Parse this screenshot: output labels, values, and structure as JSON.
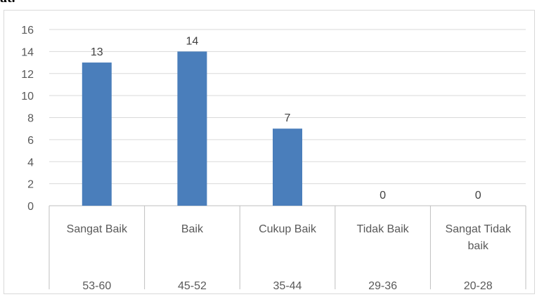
{
  "top_fragment": "at.",
  "chart_data": {
    "type": "bar",
    "categories": [
      {
        "label": [
          "Sangat Baik"
        ],
        "range": "53-60"
      },
      {
        "label": [
          "Baik"
        ],
        "range": "45-52"
      },
      {
        "label": [
          "Cukup Baik"
        ],
        "range": "35-44"
      },
      {
        "label": [
          "Tidak Baik"
        ],
        "range": "29-36"
      },
      {
        "label": [
          "Sangat Tidak",
          "baik"
        ],
        "range": "20-28"
      }
    ],
    "values": [
      13,
      14,
      7,
      0,
      0
    ],
    "yticks": [
      0,
      2,
      4,
      6,
      8,
      10,
      12,
      14,
      16
    ],
    "ylim": [
      0,
      16
    ],
    "grid": true,
    "data_labels": true,
    "colors": {
      "bar": "#4a7ebb",
      "grid": "#d9d9d9",
      "axis": "#bfbfbf"
    }
  }
}
